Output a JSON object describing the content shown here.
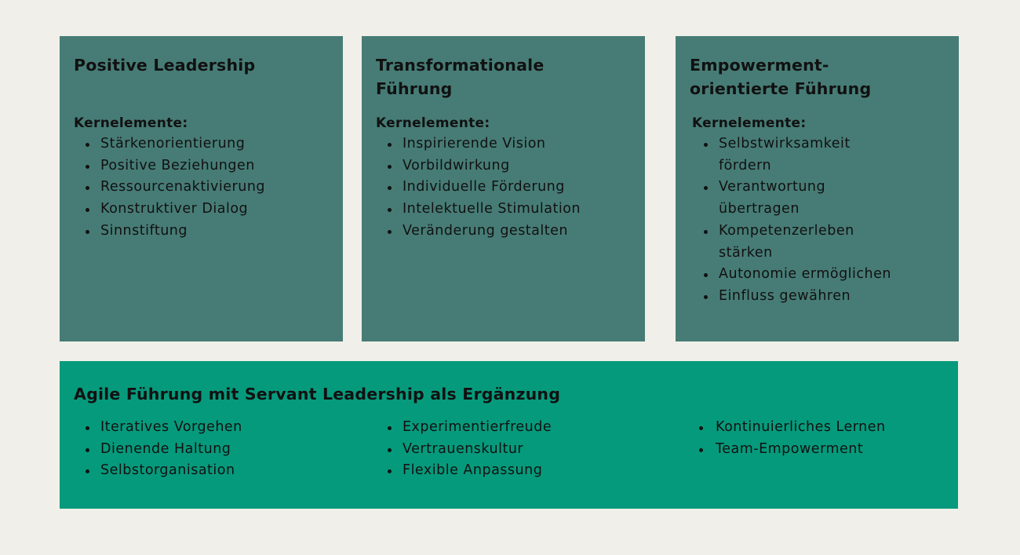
{
  "cards": [
    {
      "title": "Positive Leadership",
      "subtitle": "Kernelemente:",
      "items": [
        "Stärkenorientierung",
        "Positive Beziehungen",
        "Ressourcenaktivierung",
        "Konstruktiver Dialog",
        "Sinnstiftung"
      ]
    },
    {
      "title_line1": "Transformationale",
      "title_line2": "Führung",
      "subtitle": "Kernelemente:",
      "items": [
        "Inspirierende Vision",
        "Vorbildwirkung",
        "Individuelle Förderung",
        "Intelektuelle Stimulation",
        "Veränderung gestalten"
      ]
    },
    {
      "title_line1": "Empowerment-",
      "title_line2": "orientierte Führung",
      "subtitle": "Kernelemente:",
      "items": [
        {
          "line1": "Selbstwirksamkeit",
          "line2": "fördern"
        },
        {
          "line1": "Verantwortung",
          "line2": "übertragen"
        },
        {
          "line1": "Kompetenzerleben",
          "line2": "stärken"
        },
        {
          "line1": "Autonomie ermöglichen"
        },
        {
          "line1": "Einfluss gewähren"
        }
      ]
    }
  ],
  "bottom": {
    "title": "Agile Führung mit Servant Leadership als Ergänzung",
    "columns": [
      [
        "Iteratives Vorgehen",
        "Dienende Haltung",
        "Selbstorganisation"
      ],
      [
        "Experimentierfreude",
        "Vertrauenskultur",
        "Flexible Anpassung"
      ],
      [
        "Kontinuierliches Lernen",
        "Team-Empowerment"
      ]
    ]
  },
  "colors": {
    "background": "#f0efe9",
    "card": "#477c76",
    "wide_card": "#069a7c",
    "text": "#111111"
  }
}
